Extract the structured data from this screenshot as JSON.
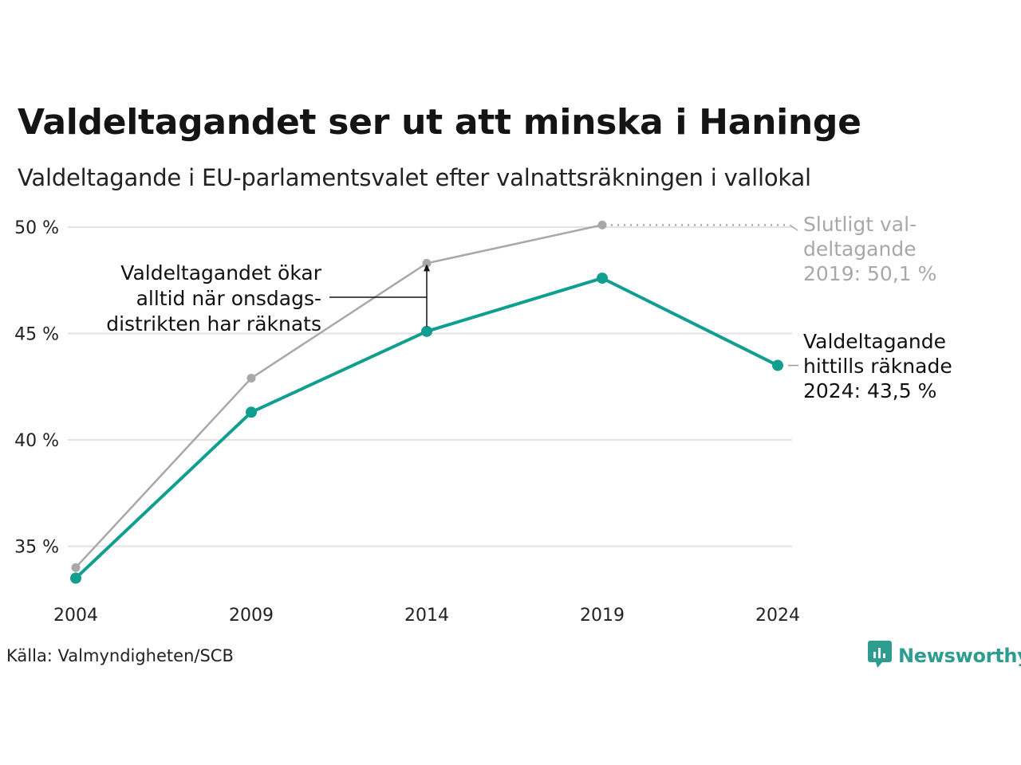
{
  "title": "Valdeltagandet ser ut att minska i Haninge",
  "subtitle": "Valdeltagande i EU-parlamentsvalet efter valnattsräkningen i vallokal",
  "source": "Källa: Valmyndigheten/SCB",
  "brand": {
    "name": "Newsworthy",
    "color": "#2e9c8f",
    "icon": "newsworthy-logo-icon"
  },
  "chart_data": {
    "type": "line",
    "x": [
      "2004",
      "2009",
      "2014",
      "2019",
      "2024"
    ],
    "ylim": [
      33,
      51
    ],
    "yticks": [
      35,
      40,
      45,
      50
    ],
    "ytick_labels": [
      "35 %",
      "40 %",
      "45 %",
      "50 %"
    ],
    "grid": true,
    "series": [
      {
        "key": "final",
        "color": "#a8a8a8",
        "values": [
          34.0,
          42.9,
          48.3,
          50.1,
          null
        ]
      },
      {
        "key": "counted",
        "color": "#0f9e8f",
        "values": [
          33.5,
          41.3,
          45.1,
          47.6,
          43.5
        ]
      }
    ],
    "annotations": {
      "final_label": [
        "Slutligt val-",
        "deltagande",
        "2019: 50,1 %"
      ],
      "counted_label": [
        "Valdeltagande",
        "hittills räknade",
        "2024: 43,5 %"
      ],
      "gap_note": [
        "Valdeltagandet ökar",
        "alltid när onsdags-",
        "distrikten har räknats"
      ]
    }
  }
}
